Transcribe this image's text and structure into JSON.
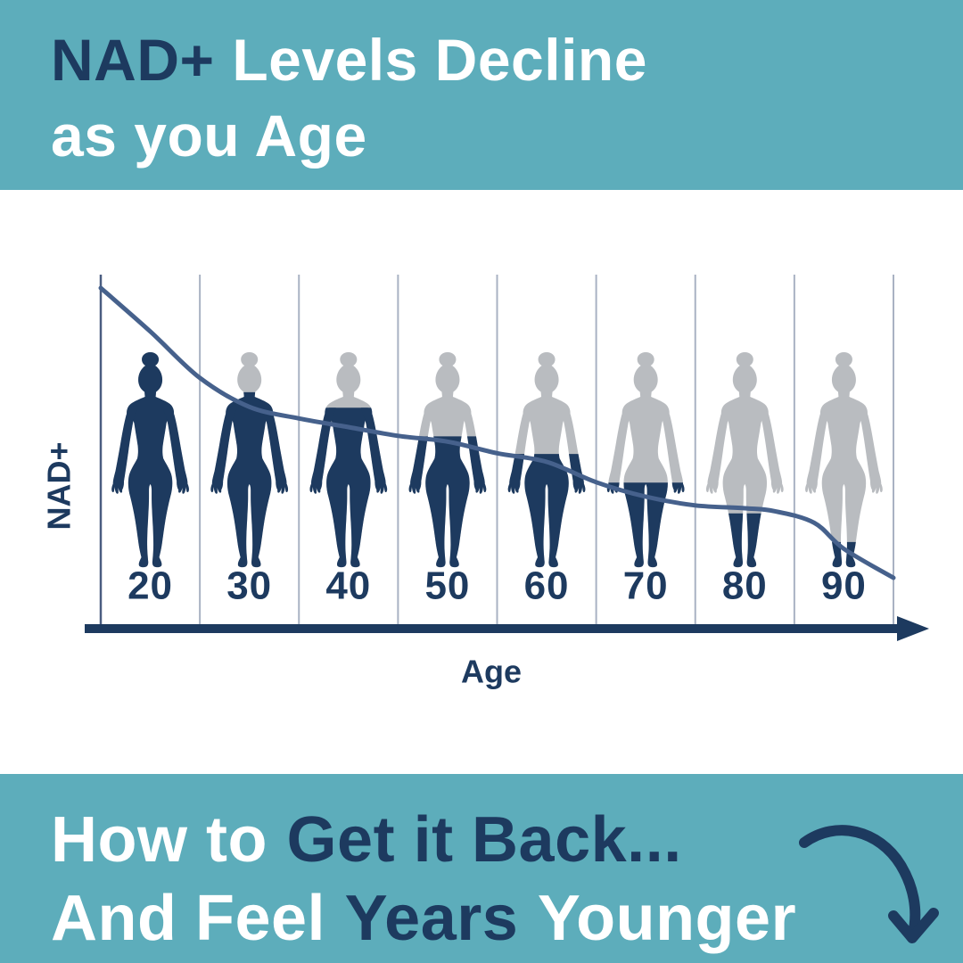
{
  "colors": {
    "teal": "#5dadbb",
    "navy": "#1d3a5f",
    "figure_gray": "#b9bcc0",
    "trend_line": "#46618c",
    "gridline": "#a9b2c3",
    "y_axis": "#4a5d80",
    "white": "#ffffff"
  },
  "header": {
    "line1_accent": "NAD+",
    "line1_rest": "Levels Decline",
    "line2": "as you Age"
  },
  "chart_data": {
    "type": "line",
    "title": "NAD+ Levels Decline as you Age",
    "xlabel": "Age",
    "ylabel": "NAD+",
    "categories": [
      "20",
      "30",
      "40",
      "50",
      "60",
      "70",
      "80",
      "90"
    ],
    "series": [
      {
        "name": "NAD+ level shown as fraction of body silhouette filled",
        "values": [
          1.0,
          0.81,
          0.74,
          0.61,
          0.53,
          0.4,
          0.26,
          0.13
        ]
      }
    ],
    "trend_line": {
      "x_age": [
        15,
        20,
        25,
        30,
        35,
        40,
        45,
        50,
        55,
        60,
        65,
        70,
        75,
        80,
        83,
        87,
        90,
        95
      ],
      "level": [
        1.0,
        0.85,
        0.69,
        0.59,
        0.55,
        0.52,
        0.49,
        0.47,
        0.43,
        0.4,
        0.33,
        0.28,
        0.25,
        0.24,
        0.23,
        0.19,
        0.1,
        0.0
      ]
    },
    "xlim": [
      15,
      95
    ],
    "ylim": [
      0,
      1
    ],
    "legend": "none",
    "grid": "vertical column dividers, one per decade",
    "annotations": "eight female body silhouettes, navy fill from feet up to the current NAD+ level, gray above; declining trend curve overlaid; x-axis drawn as thick navy arrow"
  },
  "footer": {
    "line1_white": "How to",
    "line1_navy": "Get it Back...",
    "line2_white_a": "And Feel",
    "line2_navy": "Years",
    "line2_white_b": "Younger"
  },
  "icons": {
    "x_axis_arrow": "right-pointing solid arrowhead at end of age axis",
    "curved_down_arrow": "hand-drawn swoosh arrow curving right and pointing down"
  }
}
